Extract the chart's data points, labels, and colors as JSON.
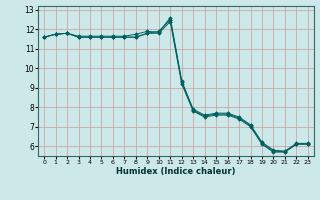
{
  "xlabel": "Humidex (Indice chaleur)",
  "xlim": [
    -0.5,
    23.5
  ],
  "ylim": [
    5.5,
    13.2
  ],
  "xticks": [
    0,
    1,
    2,
    3,
    4,
    5,
    6,
    7,
    8,
    9,
    10,
    11,
    12,
    13,
    14,
    15,
    16,
    17,
    18,
    19,
    20,
    21,
    22,
    23
  ],
  "yticks": [
    6,
    7,
    8,
    9,
    10,
    11,
    12,
    13
  ],
  "bg_color": "#cde8e8",
  "grid_color": "#cc9999",
  "line_color": "#006060",
  "series": [
    [
      11.6,
      11.75,
      11.8,
      11.6,
      11.6,
      11.6,
      11.6,
      11.6,
      11.6,
      11.8,
      11.8,
      12.4,
      9.2,
      7.8,
      7.5,
      7.6,
      7.6,
      7.4,
      7.0,
      6.1,
      5.7,
      5.7,
      6.1,
      6.1
    ],
    [
      11.6,
      11.75,
      11.8,
      11.65,
      11.65,
      11.65,
      11.65,
      11.65,
      11.75,
      11.9,
      11.85,
      12.6,
      9.35,
      7.9,
      7.6,
      7.7,
      7.7,
      7.5,
      7.1,
      6.2,
      5.8,
      5.75,
      6.15,
      6.15
    ],
    [
      11.6,
      11.75,
      11.8,
      11.6,
      11.6,
      11.6,
      11.6,
      11.6,
      11.6,
      11.8,
      11.9,
      12.5,
      9.3,
      7.85,
      7.55,
      7.65,
      7.65,
      7.45,
      7.05,
      6.15,
      5.75,
      5.72,
      6.12,
      6.12
    ]
  ]
}
